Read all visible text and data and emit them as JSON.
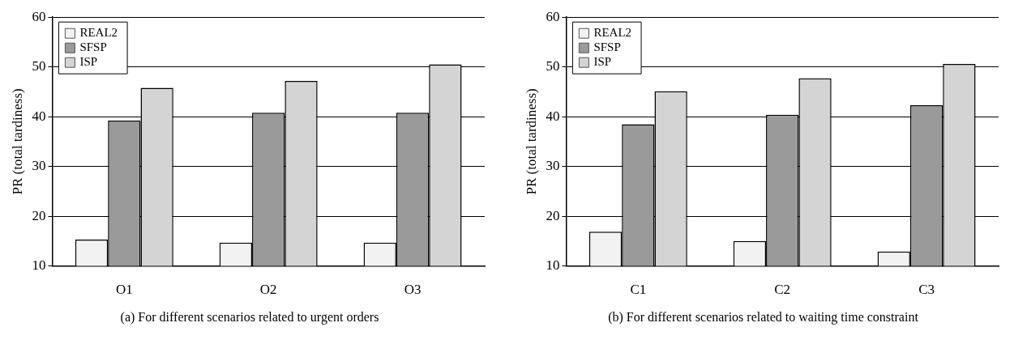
{
  "chart_data": [
    {
      "type": "bar",
      "categories": [
        "O1",
        "O2",
        "O3"
      ],
      "ylabel": "PR (total tardiness)",
      "ylim": [
        10,
        60
      ],
      "yticks": [
        10,
        20,
        30,
        40,
        50,
        60
      ],
      "grid": "y",
      "legend": "top left",
      "series": [
        {
          "name": "REAL2",
          "color": "#f2f2f2",
          "values": [
            15.3,
            14.7,
            14.7
          ]
        },
        {
          "name": "SFSP",
          "color": "#9a9a9a",
          "values": [
            39.2,
            40.8,
            40.8
          ]
        },
        {
          "name": "ISP",
          "color": "#d4d4d4",
          "values": [
            45.8,
            47.2,
            50.5
          ]
        }
      ],
      "annotations": [
        "(a) For different scenarios related to urgent orders"
      ]
    },
    {
      "type": "bar",
      "categories": [
        "C1",
        "C2",
        "C3"
      ],
      "ylabel": "PR (total tardiness)",
      "ylim": [
        10,
        60
      ],
      "yticks": [
        10,
        20,
        30,
        40,
        50,
        60
      ],
      "grid": "y",
      "legend": "top left",
      "series": [
        {
          "name": "REAL2",
          "color": "#f2f2f2",
          "values": [
            16.9,
            15.0,
            12.9
          ]
        },
        {
          "name": "SFSP",
          "color": "#9a9a9a",
          "values": [
            38.5,
            40.4,
            42.3
          ]
        },
        {
          "name": "ISP",
          "color": "#d4d4d4",
          "values": [
            45.1,
            47.7,
            50.6
          ]
        }
      ],
      "annotations": [
        "(b) For different scenarios related to waiting time constraint"
      ]
    }
  ]
}
